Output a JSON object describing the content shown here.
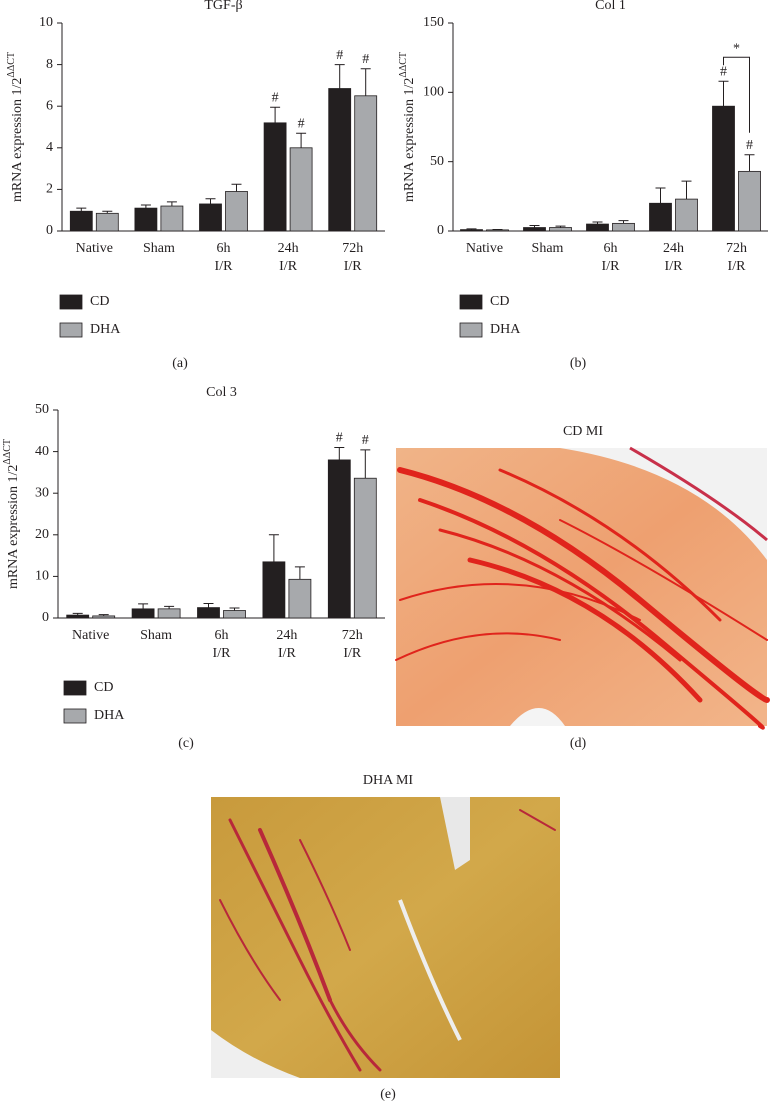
{
  "chart_data": [
    {
      "type": "bar",
      "title": "TGF-β",
      "ylabel": "mRNA expression 1/2",
      "ylabel_superscript": "ΔΔCT",
      "caption": "(a)",
      "categories": [
        "Native",
        "Sham",
        "6h I/R",
        "24h I/R",
        "72h I/R"
      ],
      "series": [
        {
          "name": "CD",
          "color": "#231f20",
          "values": [
            0.95,
            1.1,
            1.3,
            5.2,
            6.85
          ],
          "errors": [
            0.15,
            0.15,
            0.25,
            0.75,
            1.15
          ],
          "significance": [
            null,
            null,
            null,
            "#",
            "#"
          ]
        },
        {
          "name": "DHA",
          "color": "#a7a9ac",
          "values": [
            0.85,
            1.2,
            1.9,
            4.0,
            6.5
          ],
          "errors": [
            0.1,
            0.2,
            0.35,
            0.7,
            1.3
          ],
          "significance": [
            null,
            null,
            null,
            "#",
            "#"
          ]
        }
      ],
      "ylim": [
        0,
        10
      ],
      "yticks": [
        0,
        2,
        4,
        6,
        8,
        10
      ],
      "legend": "bottom-left"
    },
    {
      "type": "bar",
      "title": "Col 1",
      "ylabel": "mRNA expression 1/2",
      "ylabel_superscript": "ΔΔCT",
      "caption": "(b)",
      "categories": [
        "Native",
        "Sham",
        "6h I/R",
        "24h I/R",
        "72h I/R"
      ],
      "series": [
        {
          "name": "CD",
          "color": "#231f20",
          "values": [
            1,
            2.5,
            5,
            20,
            90
          ],
          "errors": [
            0.5,
            1.5,
            1.5,
            11,
            18
          ],
          "significance": [
            null,
            null,
            null,
            null,
            "#"
          ]
        },
        {
          "name": "DHA",
          "color": "#a7a9ac",
          "values": [
            0.8,
            2.5,
            5.5,
            23,
            43
          ],
          "errors": [
            0.3,
            1,
            2,
            13,
            12
          ],
          "significance": [
            null,
            null,
            null,
            null,
            "#"
          ]
        }
      ],
      "bracket": {
        "label": "*",
        "category": 4
      },
      "ylim": [
        0,
        150
      ],
      "yticks": [
        0,
        50,
        100,
        150
      ],
      "legend": "bottom-left"
    },
    {
      "type": "bar",
      "title": "Col 3",
      "ylabel": "mRNA expression 1/2",
      "ylabel_superscript": "ΔΔCT",
      "caption": "(c)",
      "categories": [
        "Native",
        "Sham",
        "6h I/R",
        "24h I/R",
        "72h I/R"
      ],
      "series": [
        {
          "name": "CD",
          "color": "#231f20",
          "values": [
            0.7,
            2.2,
            2.5,
            13.5,
            38
          ],
          "errors": [
            0.4,
            1.2,
            1,
            6.5,
            3
          ],
          "significance": [
            null,
            null,
            null,
            null,
            "#"
          ]
        },
        {
          "name": "DHA",
          "color": "#a7a9ac",
          "values": [
            0.5,
            2.2,
            1.8,
            9.3,
            33.6
          ],
          "errors": [
            0.3,
            0.6,
            0.6,
            3,
            6.8
          ],
          "significance": [
            null,
            null,
            null,
            null,
            "#"
          ]
        }
      ],
      "ylim": [
        0,
        50
      ],
      "yticks": [
        0,
        10,
        20,
        30,
        40,
        50
      ],
      "legend": "bottom-left"
    }
  ],
  "images": [
    {
      "title": "CD MI",
      "caption": "(d)"
    },
    {
      "title": "DHA MI",
      "caption": "(e)"
    }
  ]
}
